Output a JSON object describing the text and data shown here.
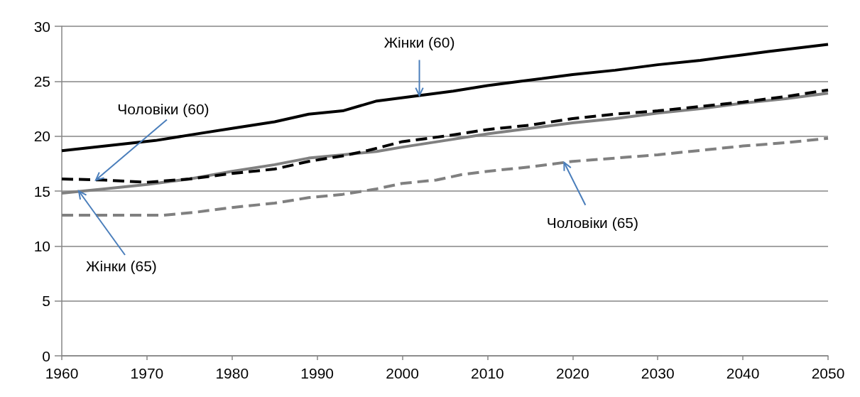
{
  "chart_data": {
    "type": "line",
    "series": [
      {
        "color": "#000000",
        "line_style": "solid",
        "x": [
          1960,
          1971,
          1975,
          1980,
          1985,
          1989,
          1993,
          1997,
          2002,
          2006,
          2010,
          2014,
          2020,
          2025,
          2030,
          2035,
          2040,
          2043,
          2050
        ],
        "values": [
          18.67,
          19.6,
          20.1,
          20.7,
          21.3,
          22.0,
          22.3,
          23.2,
          23.7,
          24.1,
          24.6,
          25.0,
          25.6,
          26.0,
          26.5,
          26.9,
          27.4,
          27.7,
          28.35
        ]
      },
      {
        "color": "#000000",
        "line_style": "dashed",
        "x": [
          1960,
          1965,
          1970,
          1975,
          1980,
          1985,
          1989,
          1993,
          1996,
          2000,
          2005,
          2010,
          2015,
          2020,
          2025,
          2030,
          2035,
          2040,
          2045,
          2050
        ],
        "values": [
          16.1,
          16.0,
          15.8,
          16.1,
          16.6,
          17.0,
          17.7,
          18.2,
          18.7,
          19.5,
          20.0,
          20.6,
          21.0,
          21.6,
          22.0,
          22.3,
          22.7,
          23.1,
          23.6,
          24.2
        ]
      },
      {
        "color": "#808080",
        "line_style": "solid",
        "x": [
          1960,
          1965,
          1970,
          1975,
          1980,
          1985,
          1989,
          1993,
          1997,
          2000,
          2005,
          2010,
          2015,
          2020,
          2025,
          2030,
          2035,
          2040,
          2045,
          2050
        ],
        "values": [
          14.8,
          15.2,
          15.6,
          16.1,
          16.8,
          17.4,
          18.0,
          18.3,
          18.6,
          19.0,
          19.6,
          20.2,
          20.7,
          21.2,
          21.6,
          22.1,
          22.5,
          23.0,
          23.4,
          23.9
        ]
      },
      {
        "color": "#808080",
        "line_style": "dashed",
        "x": [
          1960,
          1965,
          1972,
          1976,
          1980,
          1985,
          1989,
          1993,
          1997,
          2000,
          2004,
          2007,
          2010,
          2015,
          2020,
          2025,
          2030,
          2035,
          2040,
          2045,
          2050
        ],
        "values": [
          12.8,
          12.8,
          12.8,
          13.1,
          13.5,
          13.9,
          14.4,
          14.7,
          15.2,
          15.7,
          16.0,
          16.5,
          16.8,
          17.2,
          17.7,
          18.0,
          18.3,
          18.7,
          19.1,
          19.4,
          19.8
        ]
      }
    ],
    "xlim": [
      1960,
      2050
    ],
    "xticks": [
      1960,
      1970,
      1980,
      1990,
      2000,
      2010,
      2020,
      2030,
      2040,
      2050
    ],
    "ylim": [
      0,
      30
    ],
    "yticks": [
      0,
      5,
      10,
      15,
      20,
      25,
      30
    ],
    "grid": "y",
    "annotations": [
      {
        "text": "Жінки (60)",
        "x": 2002,
        "y": 23.7
      },
      {
        "text": "Чоловіки (60)",
        "x": 1964,
        "y": 16.0
      },
      {
        "text": "Жінки (65)",
        "x": 1962,
        "y": 15.0
      },
      {
        "text": "Чоловіки (65)",
        "x": 2019,
        "y": 17.6
      }
    ]
  }
}
